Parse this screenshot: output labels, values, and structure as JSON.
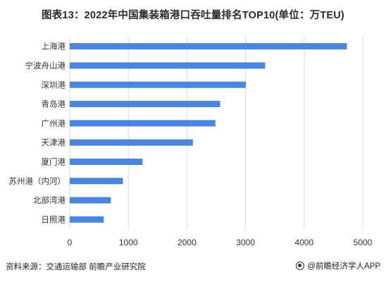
{
  "title": "图表13：2022年中国集装箱港口吞吐量排名TOP10(单位：万TEU)",
  "source": "资料来源：交通运输部 前瞻产业研究院",
  "brand": "@前瞻经济学人APP",
  "colors": {
    "bar": "#4a86e0",
    "grid": "#d9d9d9",
    "text": "#333333"
  },
  "chart_data": {
    "type": "bar",
    "orientation": "horizontal",
    "title": "图表13：2022年中国集装箱港口吞吐量排名TOP10(单位：万TEU)",
    "categories": [
      "上海港",
      "宁波舟山港",
      "深圳港",
      "青岛港",
      "广州港",
      "天津港",
      "厦门港",
      "苏州港（内河）",
      "北部湾港",
      "日照港"
    ],
    "values": [
      4730,
      3335,
      3004,
      2567,
      2486,
      2102,
      1243,
      908,
      702,
      580
    ],
    "xlim": [
      0,
      5000
    ],
    "xticks": [
      "0",
      "1000",
      "2000",
      "3000",
      "4000",
      "5000"
    ],
    "grid": true
  }
}
